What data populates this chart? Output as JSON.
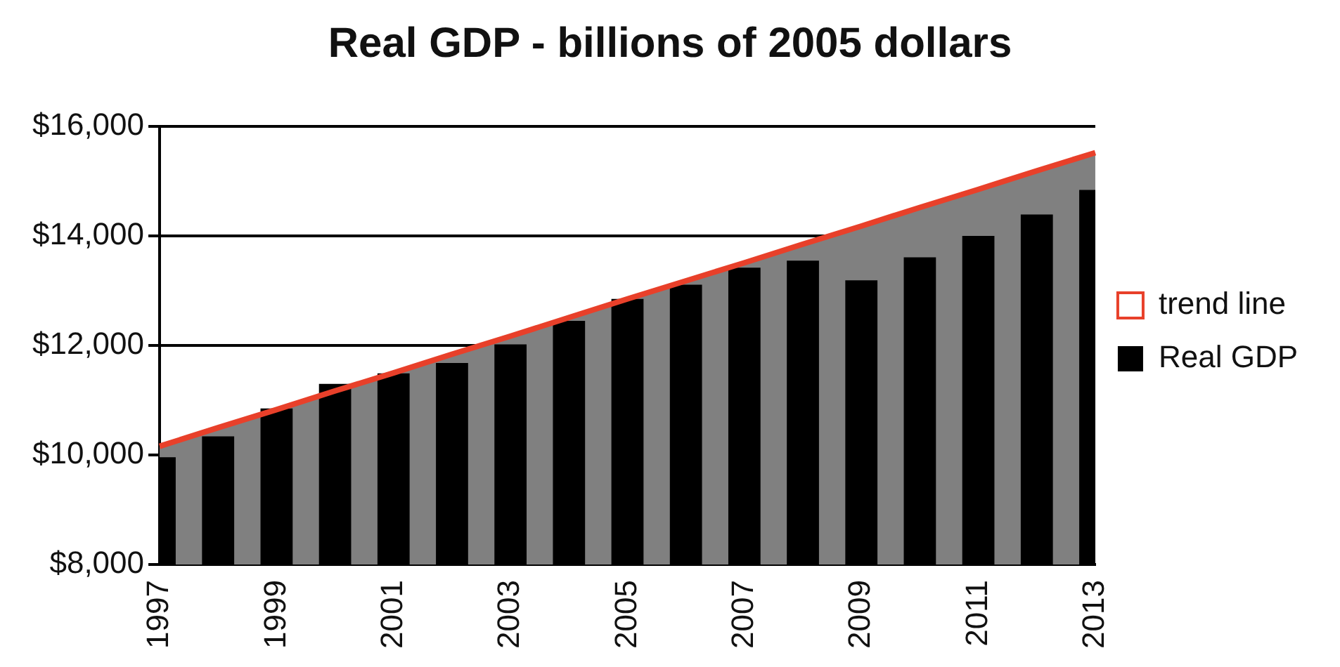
{
  "chart_data": {
    "type": "bar",
    "title": "Real GDP - billions of 2005 dollars",
    "categories": [
      "1997",
      null,
      "1999",
      null,
      "2001",
      null,
      "2003",
      null,
      "2005",
      null,
      "2007",
      null,
      "2009",
      null,
      "2011",
      null,
      "2013"
    ],
    "series": [
      {
        "name": "trend line",
        "type": "area",
        "color": "#e8402a",
        "values": [
          10160,
          10500,
          10830,
          11170,
          11500,
          11840,
          12170,
          12510,
          12850,
          13180,
          13510,
          13850,
          14180,
          14520,
          14850,
          15190,
          15520
        ]
      },
      {
        "name": "Real GDP",
        "color": "#000000",
        "values": [
          9960,
          10340,
          10850,
          11300,
          11490,
          11680,
          12020,
          12450,
          12850,
          13110,
          13420,
          13550,
          13190,
          13610,
          14000,
          14390,
          14840
        ]
      }
    ],
    "ylim": [
      8000,
      16000
    ],
    "yticks": [
      {
        "value": 8000,
        "label": "$8,000"
      },
      {
        "value": 10000,
        "label": "$10,000"
      },
      {
        "value": 12000,
        "label": "$12,000"
      },
      {
        "value": 14000,
        "label": "$14,000"
      },
      {
        "value": 16000,
        "label": "$16,000"
      }
    ],
    "grid": "y",
    "legend": "right"
  }
}
